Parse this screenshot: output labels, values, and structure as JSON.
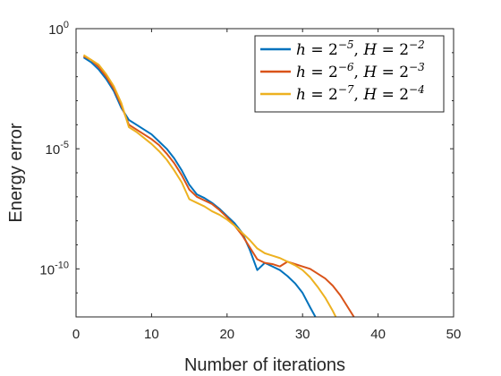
{
  "chart_data": {
    "type": "line",
    "xlabel": "Number of iterations",
    "ylabel": "Energy error",
    "xlim": [
      0,
      50
    ],
    "ylim_log10": [
      -12,
      0
    ],
    "yscale": "log",
    "x_ticks": [
      "0",
      "10",
      "20",
      "30",
      "40",
      "50"
    ],
    "y_ticks": [
      {
        "base": "10",
        "exp": "0"
      },
      {
        "base": "10",
        "exp": "-5"
      },
      {
        "base": "10",
        "exp": "-10"
      }
    ],
    "grid": false,
    "legend_position": "top-right",
    "series": [
      {
        "name": "h = 2^{-5}, H = 2^{-2}",
        "legend": {
          "h": "h",
          "h_exp": "−5",
          "H": "H",
          "H_exp": "−2",
          "eq": " = 2",
          "sep": ", "
        },
        "color": "#0072BD",
        "x": [
          1,
          2,
          3,
          4,
          5,
          6,
          7,
          8,
          9,
          10,
          11,
          12,
          13,
          14,
          15,
          16,
          17,
          18,
          19,
          20,
          21,
          22,
          23,
          24,
          25,
          26,
          27,
          28,
          29,
          30,
          31,
          31.7
        ],
        "log10y": [
          -1.2,
          -1.4,
          -1.7,
          -2.1,
          -2.6,
          -3.3,
          -3.8,
          -4.0,
          -4.2,
          -4.4,
          -4.7,
          -5.0,
          -5.4,
          -5.9,
          -6.5,
          -6.9,
          -7.05,
          -7.25,
          -7.5,
          -7.8,
          -8.1,
          -8.5,
          -9.2,
          -10.05,
          -9.75,
          -9.9,
          -10.05,
          -10.3,
          -10.6,
          -11.0,
          -11.6,
          -12.0
        ]
      },
      {
        "name": "h = 2^{-6}, H = 2^{-3}",
        "legend": {
          "h": "h",
          "h_exp": "−6",
          "H": "H",
          "H_exp": "−3",
          "eq": " = 2",
          "sep": ", "
        },
        "color": "#D95319",
        "x": [
          1,
          2,
          3,
          4,
          5,
          6,
          7,
          8,
          9,
          10,
          11,
          12,
          13,
          14,
          15,
          16,
          17,
          18,
          19,
          20,
          21,
          22,
          23,
          24,
          25,
          26,
          27,
          28,
          29,
          30,
          31,
          32,
          33,
          34,
          35,
          36,
          36.8
        ],
        "log10y": [
          -1.15,
          -1.3,
          -1.6,
          -2.0,
          -2.5,
          -3.2,
          -4.0,
          -4.2,
          -4.4,
          -4.6,
          -4.85,
          -5.2,
          -5.6,
          -6.1,
          -6.7,
          -7.0,
          -7.15,
          -7.3,
          -7.55,
          -7.85,
          -8.2,
          -8.6,
          -9.1,
          -9.6,
          -9.75,
          -9.8,
          -9.9,
          -9.7,
          -9.8,
          -9.9,
          -10.0,
          -10.2,
          -10.4,
          -10.7,
          -11.1,
          -11.6,
          -12.0
        ]
      },
      {
        "name": "h = 2^{-7}, H = 2^{-4}",
        "legend": {
          "h": "h",
          "h_exp": "−7",
          "H": "H",
          "H_exp": "−4",
          "eq": " = 2",
          "sep": ", "
        },
        "color": "#EDB120",
        "x": [
          1,
          2,
          3,
          4,
          5,
          6,
          7,
          8,
          9,
          10,
          11,
          12,
          13,
          14,
          15,
          16,
          17,
          18,
          19,
          20,
          21,
          22,
          23,
          24,
          25,
          26,
          27,
          28,
          29,
          30,
          31,
          32,
          33,
          34,
          34.4
        ],
        "log10y": [
          -1.1,
          -1.3,
          -1.5,
          -1.9,
          -2.4,
          -3.1,
          -4.1,
          -4.3,
          -4.55,
          -4.8,
          -5.1,
          -5.45,
          -5.9,
          -6.4,
          -7.1,
          -7.25,
          -7.4,
          -7.6,
          -7.75,
          -7.95,
          -8.2,
          -8.5,
          -8.8,
          -9.15,
          -9.35,
          -9.45,
          -9.55,
          -9.7,
          -9.85,
          -10.05,
          -10.35,
          -10.75,
          -11.2,
          -11.75,
          -12.0
        ]
      }
    ]
  }
}
